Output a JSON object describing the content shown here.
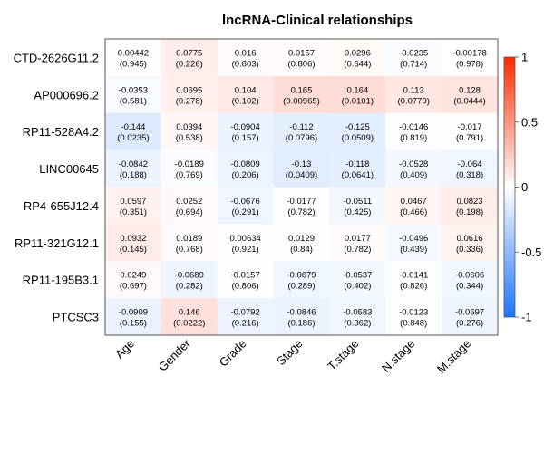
{
  "chart_data": {
    "type": "heatmap",
    "title": "lncRNA-Clinical relationships",
    "rows": [
      "CTD-2626G11.2",
      "AP000696.2",
      "RP11-528A4.2",
      "LINC00645",
      "RP4-655J12.4",
      "RP11-321G12.1",
      "RP11-195B3.1",
      "PTCSC3"
    ],
    "columns": [
      "Age",
      "Gender",
      "Grade",
      "Stage",
      "T.stage",
      "N.stage",
      "M.stage"
    ],
    "values": [
      [
        0.00442,
        0.0775,
        0.016,
        0.0157,
        0.0296,
        -0.0235,
        -0.00178
      ],
      [
        -0.0353,
        0.0695,
        0.104,
        0.165,
        0.164,
        0.113,
        0.128
      ],
      [
        -0.144,
        0.0394,
        -0.0904,
        -0.112,
        -0.125,
        -0.0146,
        -0.017
      ],
      [
        -0.0842,
        -0.0189,
        -0.0809,
        -0.13,
        -0.118,
        -0.0528,
        -0.064
      ],
      [
        0.0597,
        0.0252,
        -0.0676,
        -0.0177,
        -0.0511,
        0.0467,
        0.0823
      ],
      [
        0.0932,
        0.0189,
        0.00634,
        0.0129,
        0.0177,
        -0.0496,
        0.0616
      ],
      [
        0.0249,
        -0.0689,
        -0.0157,
        -0.0679,
        -0.0537,
        -0.0141,
        -0.0606
      ],
      [
        -0.0909,
        0.146,
        -0.0792,
        -0.0846,
        -0.0583,
        -0.0123,
        -0.0697
      ]
    ],
    "value_labels": [
      [
        "0.00442",
        "0.0775",
        "0.016",
        "0.0157",
        "0.0296",
        "-0.0235",
        "-0.00178"
      ],
      [
        "-0.0353",
        "0.0695",
        "0.104",
        "0.165",
        "0.164",
        "0.113",
        "0.128"
      ],
      [
        "-0.144",
        "0.0394",
        "-0.0904",
        "-0.112",
        "-0.125",
        "-0.0146",
        "-0.017"
      ],
      [
        "-0.0842",
        "-0.0189",
        "-0.0809",
        "-0.13",
        "-0.118",
        "-0.0528",
        "-0.064"
      ],
      [
        "0.0597",
        "0.0252",
        "-0.0676",
        "-0.0177",
        "-0.0511",
        "0.0467",
        "0.0823"
      ],
      [
        "0.0932",
        "0.0189",
        "0.00634",
        "0.0129",
        "0.0177",
        "-0.0496",
        "0.0616"
      ],
      [
        "0.0249",
        "-0.0689",
        "-0.0157",
        "-0.0679",
        "-0.0537",
        "-0.0141",
        "-0.0606"
      ],
      [
        "-0.0909",
        "0.146",
        "-0.0792",
        "-0.0846",
        "-0.0583",
        "-0.0123",
        "-0.0697"
      ]
    ],
    "pvalue_labels": [
      [
        "(0.945)",
        "(0.226)",
        "(0.803)",
        "(0.806)",
        "(0.644)",
        "(0.714)",
        "(0.978)"
      ],
      [
        "(0.581)",
        "(0.278)",
        "(0.102)",
        "(0.00965)",
        "(0.0101)",
        "(0.0779)",
        "(0.0444)"
      ],
      [
        "(0.0235)",
        "(0.538)",
        "(0.157)",
        "(0.0796)",
        "(0.0509)",
        "(0.819)",
        "(0.791)"
      ],
      [
        "(0.188)",
        "(0.769)",
        "(0.206)",
        "(0.0409)",
        "(0.0641)",
        "(0.409)",
        "(0.318)"
      ],
      [
        "(0.351)",
        "(0.694)",
        "(0.291)",
        "(0.782)",
        "(0.425)",
        "(0.466)",
        "(0.198)"
      ],
      [
        "(0.145)",
        "(0.768)",
        "(0.921)",
        "(0.84)",
        "(0.782)",
        "(0.439)",
        "(0.336)"
      ],
      [
        "(0.697)",
        "(0.282)",
        "(0.806)",
        "(0.289)",
        "(0.402)",
        "(0.826)",
        "(0.344)"
      ],
      [
        "(0.155)",
        "(0.0222)",
        "(0.216)",
        "(0.186)",
        "(0.362)",
        "(0.848)",
        "(0.276)"
      ]
    ],
    "color_scale": {
      "range": [
        -1,
        1
      ],
      "low_color": "#1a75ff",
      "mid_color": "#ffffff",
      "high_color": "#ff2a00",
      "ticks": [
        1,
        0.5,
        0,
        -0.5,
        -1
      ],
      "tick_labels": [
        "1",
        "0.5",
        "0",
        "-0.5",
        "-1"
      ]
    },
    "legend_placement": "right",
    "grid": false
  }
}
